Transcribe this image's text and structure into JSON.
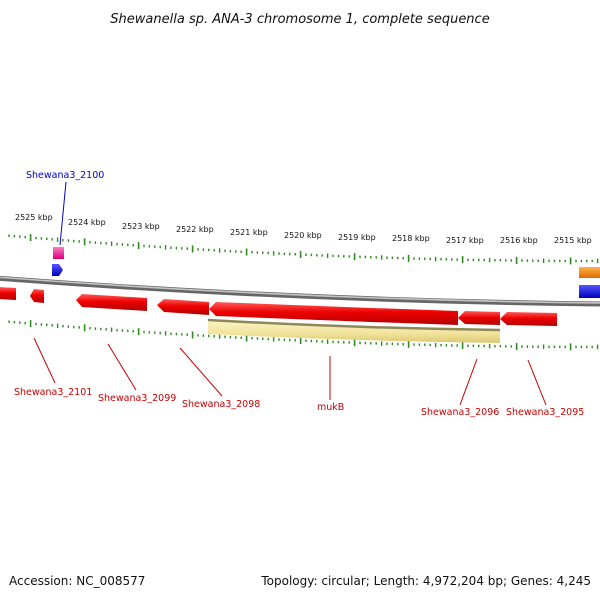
{
  "title": "Shewanella sp. ANA-3 chromosome 1, complete sequence",
  "ticks": [
    {
      "label": "2525 kbp"
    },
    {
      "label": "2524 kbp"
    },
    {
      "label": "2523 kbp"
    },
    {
      "label": "2522 kbp"
    },
    {
      "label": "2521 kbp"
    },
    {
      "label": "2520 kbp"
    },
    {
      "label": "2519 kbp"
    },
    {
      "label": "2518 kbp"
    },
    {
      "label": "2517 kbp"
    },
    {
      "label": "2516 kbp"
    },
    {
      "label": "2515 kbp"
    }
  ],
  "gene_labels": [
    {
      "name": "Shewana3_2100",
      "color": "#0000cc"
    },
    {
      "name": "Shewana3_2101",
      "color": "#cc0000"
    },
    {
      "name": "Shewana3_2099",
      "color": "#cc0000"
    },
    {
      "name": "Shewana3_2098",
      "color": "#cc0000"
    },
    {
      "name": "mukB",
      "color": "#cc0000"
    },
    {
      "name": "Shewana3_2096",
      "color": "#cc0000"
    },
    {
      "name": "Shewana3_2095",
      "color": "#cc0000"
    }
  ],
  "colors": {
    "forward_gene": "#ff0000",
    "tick_green": "#2e8b1e",
    "backbone": "#888888",
    "highlight_feature": "#f3e7a2",
    "pink_feature": "#ff2a9a",
    "blue_feature": "#0000ff",
    "orange_feature": "#ff8800"
  },
  "footer": {
    "accession": "Accession: NC_008577",
    "summary": "Topology: circular; Length: 4,972,204 bp; Genes: 4,245"
  }
}
